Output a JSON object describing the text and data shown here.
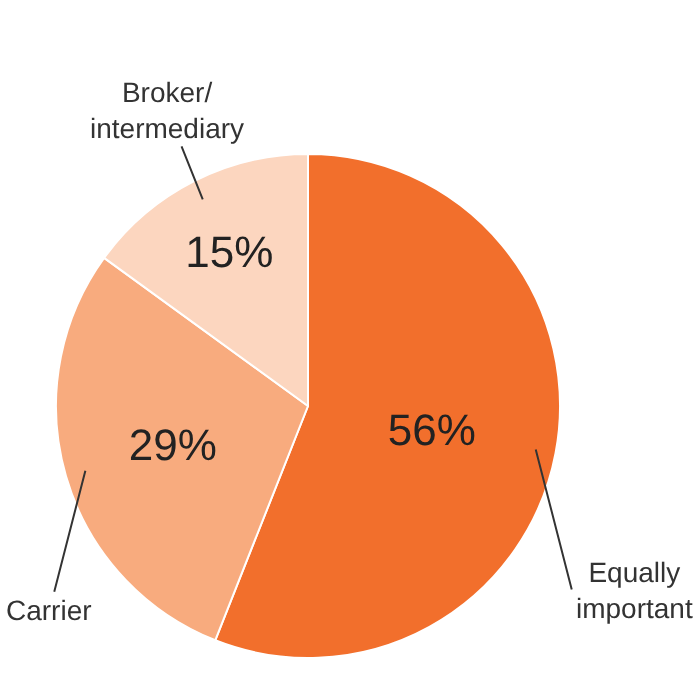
{
  "chart_data": {
    "type": "pie",
    "categories": [
      "Equally\nimportant",
      "Carrier",
      "Broker/\nintermediary"
    ],
    "values": [
      56,
      29,
      15
    ],
    "value_labels": [
      "56%",
      "29%",
      "15%"
    ],
    "colors": [
      "#f26f2c",
      "#f8ab7e",
      "#fcd6bf"
    ]
  }
}
